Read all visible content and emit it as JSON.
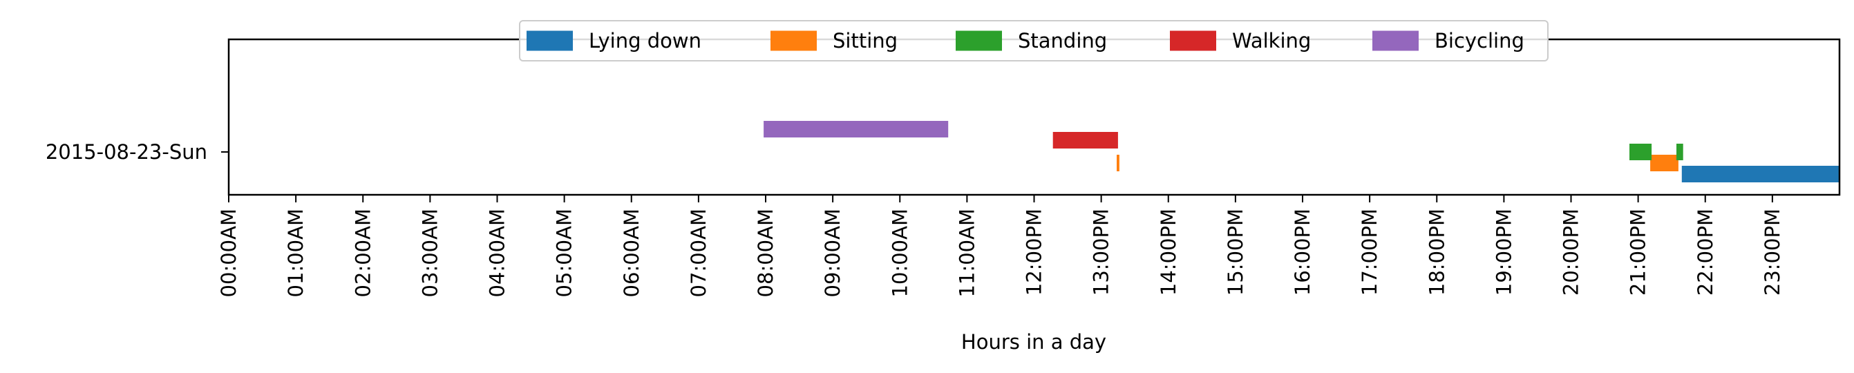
{
  "chart_data": {
    "type": "gantt",
    "title": "",
    "xlabel": "Hours in a day",
    "ylabel": "",
    "xlim": [
      0,
      24
    ],
    "x_ticks": [
      {
        "hour": 0,
        "label": "00:00AM"
      },
      {
        "hour": 1,
        "label": "01:00AM"
      },
      {
        "hour": 2,
        "label": "02:00AM"
      },
      {
        "hour": 3,
        "label": "03:00AM"
      },
      {
        "hour": 4,
        "label": "04:00AM"
      },
      {
        "hour": 5,
        "label": "05:00AM"
      },
      {
        "hour": 6,
        "label": "06:00AM"
      },
      {
        "hour": 7,
        "label": "07:00AM"
      },
      {
        "hour": 8,
        "label": "08:00AM"
      },
      {
        "hour": 9,
        "label": "09:00AM"
      },
      {
        "hour": 10,
        "label": "10:00AM"
      },
      {
        "hour": 11,
        "label": "11:00AM"
      },
      {
        "hour": 12,
        "label": "12:00PM"
      },
      {
        "hour": 13,
        "label": "13:00PM"
      },
      {
        "hour": 14,
        "label": "14:00PM"
      },
      {
        "hour": 15,
        "label": "15:00PM"
      },
      {
        "hour": 16,
        "label": "16:00PM"
      },
      {
        "hour": 17,
        "label": "17:00PM"
      },
      {
        "hour": 18,
        "label": "18:00PM"
      },
      {
        "hour": 19,
        "label": "19:00PM"
      },
      {
        "hour": 20,
        "label": "20:00PM"
      },
      {
        "hour": 21,
        "label": "21:00PM"
      },
      {
        "hour": 22,
        "label": "22:00PM"
      },
      {
        "hour": 23,
        "label": "23:00PM"
      }
    ],
    "y_categories": [
      "2015-08-23-Sun"
    ],
    "grid": false,
    "legend_position": "top-center",
    "series": [
      {
        "name": "Lying down",
        "color": "#1f77b4",
        "segments": [
          {
            "day": "2015-08-23-Sun",
            "start": 21.65,
            "end": 24.0
          }
        ]
      },
      {
        "name": "Sitting",
        "color": "#ff7f0e",
        "segments": [
          {
            "day": "2015-08-23-Sun",
            "start": 13.23,
            "end": 13.27
          },
          {
            "day": "2015-08-23-Sun",
            "start": 21.18,
            "end": 21.6
          }
        ]
      },
      {
        "name": "Standing",
        "color": "#2ca02c",
        "segments": [
          {
            "day": "2015-08-23-Sun",
            "start": 20.87,
            "end": 21.2
          },
          {
            "day": "2015-08-23-Sun",
            "start": 21.57,
            "end": 21.67
          }
        ]
      },
      {
        "name": "Walking",
        "color": "#d62728",
        "segments": [
          {
            "day": "2015-08-23-Sun",
            "start": 12.28,
            "end": 13.25
          }
        ]
      },
      {
        "name": "Bicycling",
        "color": "#9467bd",
        "segments": [
          {
            "day": "2015-08-23-Sun",
            "start": 7.97,
            "end": 10.72
          }
        ]
      }
    ]
  }
}
